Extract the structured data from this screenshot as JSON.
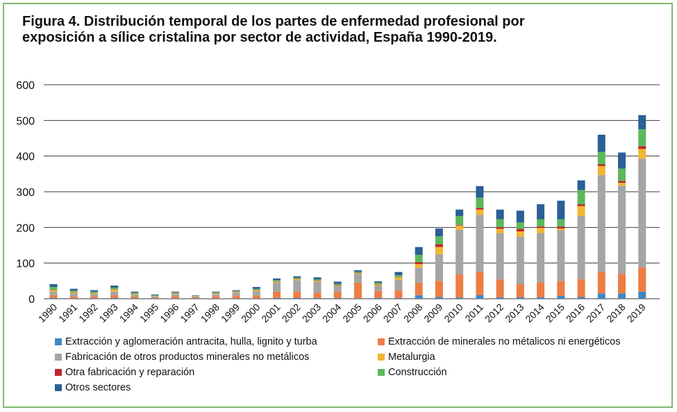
{
  "title": {
    "line1": "Figura 4. Distribución temporal de los partes de enfermedad profesional por",
    "line2": "exposición a sílice cristalina por sector de actividad, España 1990-2019."
  },
  "chart_data": {
    "type": "bar",
    "stacked": true,
    "title": "Figura 4. Distribución temporal de los partes de enfermedad profesional por exposición a sílice cristalina por sector de actividad, España 1990-2019.",
    "xlabel": "",
    "ylabel": "",
    "ylim": [
      0,
      600
    ],
    "yticks": [
      "0",
      "100",
      "200",
      "300",
      "400",
      "500",
      "600"
    ],
    "grid": true,
    "legend_position": "bottom",
    "categories": [
      "1990",
      "1991",
      "1992",
      "1993",
      "1994",
      "1995",
      "1996",
      "1997",
      "1998",
      "1999",
      "2000",
      "2001",
      "2002",
      "2003",
      "2004",
      "2005",
      "2006",
      "2007",
      "2008",
      "2009",
      "2010",
      "2011",
      "2012",
      "2013",
      "2014",
      "2015",
      "2016",
      "2017",
      "2018",
      "2019"
    ],
    "series": [
      {
        "name": "Extracción y aglomeración antracita, hulla, lignito y turba",
        "color": "#3f86c6",
        "values": [
          2,
          1,
          1,
          2,
          1,
          1,
          1,
          1,
          1,
          1,
          1,
          2,
          2,
          2,
          2,
          1,
          2,
          2,
          10,
          5,
          3,
          10,
          4,
          4,
          4,
          8,
          5,
          15,
          15,
          20
        ]
      },
      {
        "name": "Extracción de minerales no métalicos ni energéticos",
        "color": "#ed7d45",
        "values": [
          8,
          6,
          5,
          8,
          5,
          3,
          6,
          3,
          6,
          8,
          8,
          18,
          18,
          15,
          18,
          44,
          20,
          22,
          35,
          45,
          65,
          65,
          50,
          37,
          42,
          42,
          50,
          60,
          55,
          68
        ]
      },
      {
        "name": "Fabricación de otros productos minerales no metálicos",
        "color": "#a5a5a5",
        "values": [
          10,
          8,
          6,
          10,
          5,
          3,
          6,
          3,
          6,
          8,
          12,
          25,
          32,
          30,
          15,
          25,
          15,
          30,
          42,
          75,
          125,
          160,
          130,
          133,
          138,
          142,
          177,
          272,
          247,
          305
        ]
      },
      {
        "name": "Metalurgia",
        "color": "#f2b633",
        "values": [
          4,
          3,
          3,
          6,
          2,
          1,
          2,
          1,
          2,
          2,
          3,
          3,
          3,
          3,
          2,
          2,
          3,
          6,
          10,
          20,
          12,
          15,
          12,
          15,
          15,
          5,
          28,
          25,
          8,
          27
        ]
      },
      {
        "name": "Otra fabricación y reparación",
        "color": "#c0272d",
        "values": [
          1,
          1,
          1,
          1,
          1,
          0,
          1,
          0,
          1,
          1,
          1,
          1,
          1,
          1,
          1,
          1,
          1,
          1,
          6,
          8,
          2,
          5,
          5,
          7,
          4,
          6,
          5,
          5,
          5,
          8
        ]
      },
      {
        "name": "Construcción",
        "color": "#5cb85c",
        "values": [
          8,
          4,
          4,
          4,
          3,
          2,
          2,
          1,
          2,
          2,
          3,
          3,
          3,
          3,
          4,
          3,
          4,
          5,
          20,
          22,
          25,
          28,
          22,
          18,
          20,
          20,
          40,
          35,
          35,
          47
        ]
      },
      {
        "name": "Otros sectores",
        "color": "#2b5f96",
        "values": [
          8,
          5,
          4,
          6,
          3,
          2,
          2,
          1,
          2,
          2,
          5,
          5,
          4,
          6,
          6,
          4,
          4,
          9,
          22,
          22,
          18,
          33,
          27,
          33,
          42,
          52,
          27,
          48,
          45,
          40
        ]
      }
    ]
  }
}
